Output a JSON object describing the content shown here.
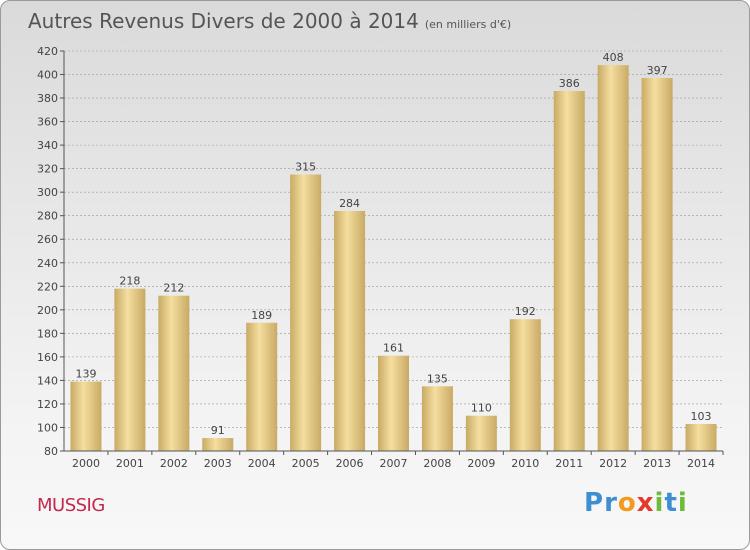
{
  "title": "Autres Revenus Divers de 2000 à 2014",
  "unit": "(en milliers d'€)",
  "commune": "MUSSIG",
  "logo": {
    "letters": [
      "P",
      "r",
      "o",
      "x",
      "i",
      "t",
      "i"
    ],
    "colors": [
      "#3d8fd1",
      "#3d8fd1",
      "#f29a1d",
      "#e43a2a",
      "#6dbb3b",
      "#3d8fd1",
      "#6dbb3b"
    ]
  },
  "chart_data": {
    "type": "bar",
    "categories": [
      "2000",
      "2001",
      "2002",
      "2003",
      "2004",
      "2005",
      "2006",
      "2007",
      "2008",
      "2009",
      "2010",
      "2011",
      "2012",
      "2013",
      "2014"
    ],
    "values": [
      139,
      218,
      212,
      91,
      189,
      315,
      284,
      161,
      135,
      110,
      192,
      386,
      408,
      397,
      103
    ],
    "data_labels": [
      "139",
      "218",
      "212",
      "91",
      "189",
      "315",
      "284",
      "161",
      "135",
      "110",
      "192",
      "386",
      "408",
      "397",
      "103"
    ],
    "ylim": [
      80,
      420
    ],
    "yticks": [
      80,
      100,
      120,
      140,
      160,
      180,
      200,
      220,
      240,
      260,
      280,
      300,
      320,
      340,
      360,
      380,
      400,
      420
    ],
    "grid": true,
    "colors": {
      "bar_light": "#f5dea0",
      "bar_dark": "#c8aa64",
      "axis": "#555555",
      "grid": "#999999",
      "text": "#444444"
    }
  }
}
